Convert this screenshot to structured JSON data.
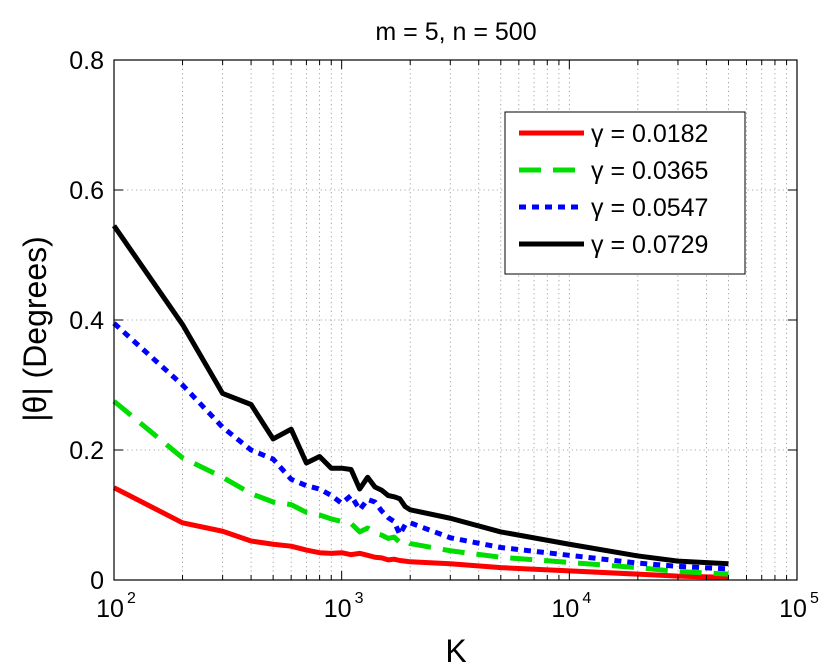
{
  "chart_data": {
    "type": "line",
    "title": "m = 5, n = 500",
    "xlabel": "K",
    "ylabel": "|θ| (Degrees)",
    "xscale": "log",
    "xlim": [
      100,
      100000
    ],
    "ylim": [
      0,
      0.8
    ],
    "grid": true,
    "legend_position": "top-right",
    "x_ticks": [
      {
        "value": 100,
        "base": "10",
        "exp": "2"
      },
      {
        "value": 1000,
        "base": "10",
        "exp": "3"
      },
      {
        "value": 10000,
        "base": "10",
        "exp": "4"
      },
      {
        "value": 100000,
        "base": "10",
        "exp": "5"
      }
    ],
    "y_ticks": [
      {
        "value": 0,
        "label": "0"
      },
      {
        "value": 0.2,
        "label": "0.2"
      },
      {
        "value": 0.4,
        "label": "0.4"
      },
      {
        "value": 0.6,
        "label": "0.6"
      },
      {
        "value": 0.8,
        "label": "0.8"
      }
    ],
    "series": [
      {
        "name": "γ = 0.0182",
        "color": "#ff0000",
        "style": "solid",
        "x": [
          100,
          200,
          300,
          400,
          500,
          600,
          700,
          800,
          900,
          1000,
          1100,
          1200,
          1300,
          1400,
          1500,
          1600,
          1700,
          1800,
          1900,
          2000,
          3000,
          5000,
          10000,
          20000,
          30000,
          50000
        ],
        "y": [
          0.142,
          0.088,
          0.075,
          0.06,
          0.055,
          0.052,
          0.046,
          0.042,
          0.041,
          0.042,
          0.039,
          0.041,
          0.038,
          0.035,
          0.034,
          0.031,
          0.032,
          0.03,
          0.029,
          0.028,
          0.025,
          0.019,
          0.014,
          0.009,
          0.006,
          0.004
        ]
      },
      {
        "name": "γ = 0.0365",
        "color": "#00dd00",
        "style": "dashed",
        "x": [
          100,
          200,
          300,
          400,
          500,
          600,
          700,
          800,
          900,
          1000,
          1100,
          1200,
          1300,
          1400,
          1500,
          1600,
          1700,
          1800,
          1900,
          2000,
          3000,
          5000,
          10000,
          20000,
          30000,
          50000
        ],
        "y": [
          0.275,
          0.188,
          0.158,
          0.133,
          0.12,
          0.116,
          0.104,
          0.1,
          0.094,
          0.09,
          0.087,
          0.074,
          0.08,
          0.072,
          0.069,
          0.064,
          0.066,
          0.058,
          0.061,
          0.056,
          0.045,
          0.035,
          0.027,
          0.019,
          0.013,
          0.009
        ]
      },
      {
        "name": "γ = 0.0547",
        "color": "#0000ff",
        "style": "dotted",
        "x": [
          100,
          200,
          300,
          400,
          500,
          600,
          700,
          800,
          900,
          1000,
          1100,
          1200,
          1300,
          1400,
          1500,
          1600,
          1700,
          1800,
          1900,
          2000,
          3000,
          5000,
          10000,
          20000,
          30000,
          50000
        ],
        "y": [
          0.395,
          0.3,
          0.235,
          0.2,
          0.186,
          0.155,
          0.145,
          0.14,
          0.13,
          0.118,
          0.13,
          0.108,
          0.124,
          0.12,
          0.106,
          0.096,
          0.09,
          0.07,
          0.085,
          0.088,
          0.065,
          0.05,
          0.038,
          0.026,
          0.021,
          0.017
        ]
      },
      {
        "name": "γ = 0.0729",
        "color": "#000000",
        "style": "solid",
        "x": [
          100,
          200,
          300,
          400,
          500,
          600,
          700,
          800,
          900,
          1000,
          1100,
          1200,
          1300,
          1400,
          1500,
          1600,
          1700,
          1800,
          1900,
          2000,
          3000,
          5000,
          10000,
          20000,
          30000,
          50000
        ],
        "y": [
          0.545,
          0.393,
          0.287,
          0.27,
          0.217,
          0.232,
          0.18,
          0.19,
          0.172,
          0.172,
          0.17,
          0.14,
          0.158,
          0.143,
          0.138,
          0.13,
          0.128,
          0.125,
          0.113,
          0.108,
          0.095,
          0.074,
          0.055,
          0.037,
          0.029,
          0.025
        ]
      }
    ]
  }
}
